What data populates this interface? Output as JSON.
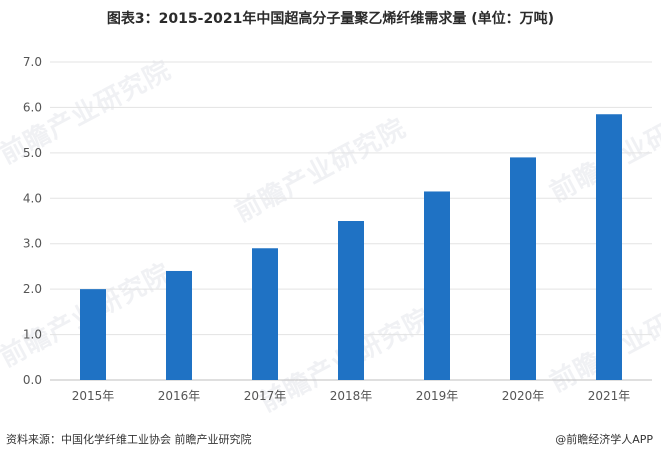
{
  "chart_data": {
    "type": "bar",
    "title": "图表3：2015-2021年中国超高分子量聚乙烯纤维需求量 (单位：万吨)",
    "categories": [
      "2015年",
      "2016年",
      "2017年",
      "2018年",
      "2019年",
      "2020年",
      "2021年"
    ],
    "values": [
      2.0,
      2.4,
      2.9,
      3.5,
      4.15,
      4.9,
      5.85
    ],
    "ylim": [
      0,
      7.0
    ],
    "yticks": [
      "0.0",
      "1.0",
      "2.0",
      "3.0",
      "4.0",
      "5.0",
      "6.0",
      "7.0"
    ],
    "grid": true,
    "legend": "none",
    "bar_color": "#1f72c4",
    "grid_color": "#e3e3e3"
  },
  "watermark": "前瞻产业研究院",
  "footer": {
    "source": "资料来源：中国化学纤维工业协会 前瞻产业研究院",
    "brand": "@前瞻经济学人APP"
  }
}
